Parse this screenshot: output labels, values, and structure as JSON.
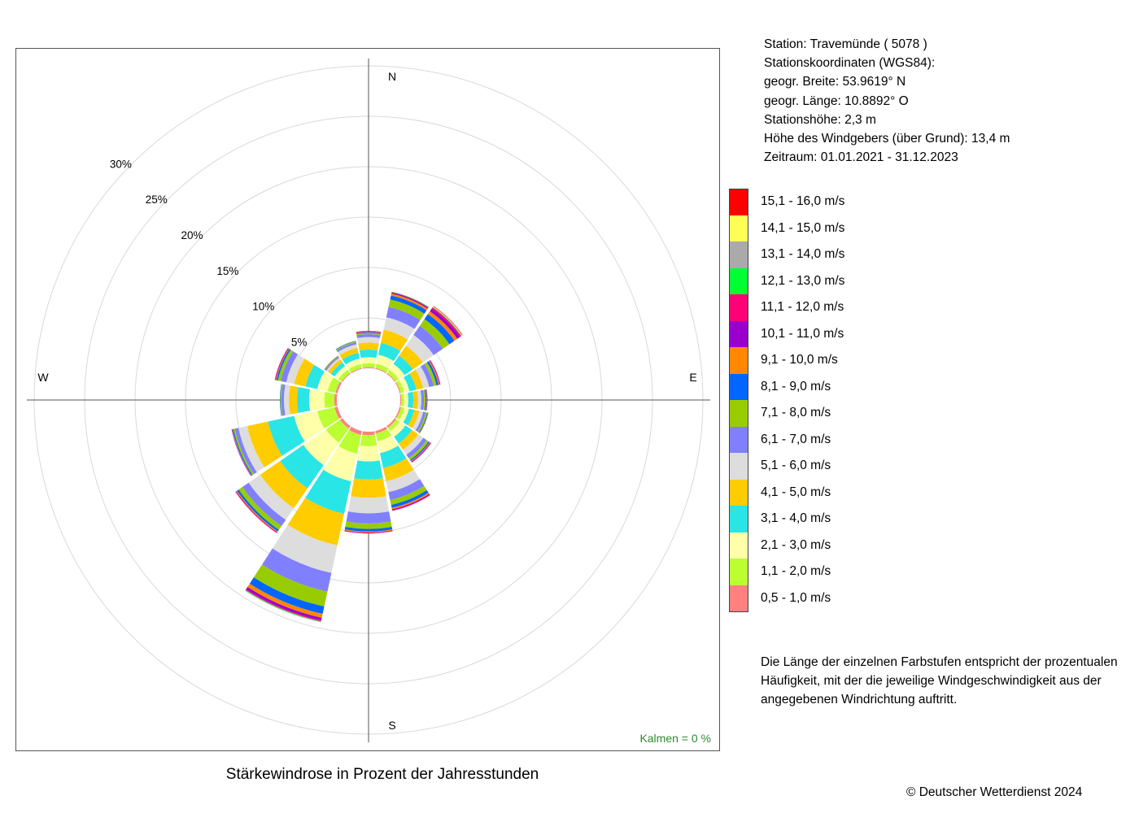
{
  "station": {
    "line1": "Station:  Travemünde  ( 5078 )",
    "line2": "Stationskoordinaten (WGS84):",
    "line3": "geogr. Breite: 53.9619° N",
    "line4": "geogr. Länge: 10.8892° O",
    "line5": "Stationshöhe: 2,3 m",
    "line6": "Höhe des Windgebers (über Grund): 13,4 m",
    "line7": "Zeitraum: 01.01.2021 - 31.12.2023"
  },
  "note": "Die Länge der einzelnen Farbstufen entspricht der prozentualen Häufigkeit, mit der die jeweilige Windgeschwindigkeit aus der angegebenen Windrichtung auftritt.",
  "copyright": "© Deutscher Wetterdienst  2024",
  "chart_data": {
    "type": "polar-stacked-bar",
    "title": "Stärkewindrose in Prozent der Jahresstunden",
    "directions": [
      "N",
      "NNO",
      "NO",
      "ONO",
      "O",
      "OSO",
      "SO",
      "SSO",
      "S",
      "SSW",
      "SW",
      "WSW",
      "W",
      "WNW",
      "NW",
      "NNW"
    ],
    "compass_labels": {
      "north": "N",
      "east": "E",
      "south": "S",
      "west": "W"
    },
    "radial_ticks": [
      {
        "value": 5,
        "label": "5%"
      },
      {
        "value": 10,
        "label": "10%"
      },
      {
        "value": 15,
        "label": "15%"
      },
      {
        "value": 20,
        "label": "20%"
      },
      {
        "value": 25,
        "label": "25%"
      },
      {
        "value": 30,
        "label": "30%"
      }
    ],
    "calm_label": "Kalmen  =  0 %",
    "bins": [
      {
        "label": "0,5 - 1,0 m/s",
        "color": "#ff8080"
      },
      {
        "label": "1,1 - 2,0 m/s",
        "color": "#bbff33"
      },
      {
        "label": "2,1 - 3,0 m/s",
        "color": "#ffffaa"
      },
      {
        "label": "3,1 - 4,0 m/s",
        "color": "#29e5e5"
      },
      {
        "label": "4,1 - 5,0 m/s",
        "color": "#ffcc00"
      },
      {
        "label": "5,1 - 6,0 m/s",
        "color": "#dddddd"
      },
      {
        "label": "6,1 - 7,0 m/s",
        "color": "#8080ff"
      },
      {
        "label": "7,1 - 8,0 m/s",
        "color": "#99cc00"
      },
      {
        "label": "8,1 - 9,0 m/s",
        "color": "#0066ff"
      },
      {
        "label": "9,1 - 10,0 m/s",
        "color": "#ff8800"
      },
      {
        "label": "10,1 - 11,0 m/s",
        "color": "#9900cc"
      },
      {
        "label": "11,1 - 12,0 m/s",
        "color": "#ff0077"
      },
      {
        "label": "12,1 - 13,0 m/s",
        "color": "#00ff33"
      },
      {
        "label": "13,1 - 14,0 m/s",
        "color": "#aaaaaa"
      },
      {
        "label": "14,1 - 15,0 m/s",
        "color": "#ffff55"
      },
      {
        "label": "15,1 - 16,0 m/s",
        "color": "#ff0000"
      }
    ],
    "series": [
      {
        "direction": "N",
        "values": [
          0.1,
          0.4,
          0.6,
          0.75,
          0.7,
          0.55,
          0.3,
          0.1,
          0.07,
          0.05,
          0.05,
          0.05,
          0,
          0,
          0,
          0
        ]
      },
      {
        "direction": "NNO",
        "values": [
          0.1,
          0.45,
          0.9,
          1.2,
          1.35,
          1.25,
          1.05,
          0.75,
          0.4,
          0.2,
          0.1,
          0.05,
          0.05,
          0,
          0,
          0
        ]
      },
      {
        "direction": "NO",
        "values": [
          0.1,
          0.4,
          0.7,
          1.0,
          1.2,
          1.3,
          1.1,
          0.8,
          0.6,
          0.35,
          0.3,
          0.15,
          0.05,
          0.05,
          0.05,
          0.05
        ]
      },
      {
        "direction": "ONO",
        "values": [
          0.1,
          0.35,
          0.55,
          0.7,
          0.7,
          0.6,
          0.45,
          0.3,
          0.2,
          0.1,
          0.05,
          0.05,
          0,
          0,
          0,
          0
        ]
      },
      {
        "direction": "O",
        "values": [
          0.1,
          0.3,
          0.4,
          0.5,
          0.45,
          0.35,
          0.25,
          0.15,
          0.1,
          0.05,
          0.05,
          0,
          0,
          0,
          0,
          0
        ]
      },
      {
        "direction": "OSO",
        "values": [
          0.15,
          0.35,
          0.45,
          0.55,
          0.5,
          0.4,
          0.25,
          0.15,
          0.08,
          0.05,
          0,
          0,
          0,
          0,
          0,
          0
        ]
      },
      {
        "direction": "SO",
        "values": [
          0.2,
          0.4,
          0.7,
          0.8,
          0.75,
          0.6,
          0.4,
          0.25,
          0.12,
          0.08,
          0.05,
          0.05,
          0,
          0,
          0,
          0
        ]
      },
      {
        "direction": "SSO",
        "values": [
          0.25,
          0.8,
          1.2,
          1.5,
          1.35,
          1.1,
          0.8,
          0.5,
          0.3,
          0.15,
          0.1,
          0.05,
          0,
          0,
          0,
          0
        ]
      },
      {
        "direction": "S",
        "values": [
          0.35,
          1.1,
          1.5,
          1.8,
          1.8,
          1.55,
          1.0,
          0.55,
          0.25,
          0.1,
          0.05,
          0.05,
          0,
          0,
          0,
          0
        ]
      },
      {
        "direction": "SSW",
        "values": [
          0.4,
          1.9,
          2.8,
          3.3,
          3.2,
          2.8,
          1.9,
          1.5,
          0.75,
          0.4,
          0.25,
          0.1,
          0.05,
          0.05,
          0,
          0
        ]
      },
      {
        "direction": "SW",
        "values": [
          0.3,
          1.7,
          2.7,
          2.8,
          2.4,
          1.4,
          0.75,
          0.45,
          0.2,
          0.1,
          0.05,
          0.05,
          0,
          0,
          0,
          0
        ]
      },
      {
        "direction": "WSW",
        "values": [
          0.3,
          1.75,
          2.35,
          2.65,
          2.1,
          0.9,
          0.35,
          0.15,
          0.1,
          0.05,
          0.05,
          0,
          0,
          0,
          0,
          0
        ]
      },
      {
        "direction": "W",
        "values": [
          0.25,
          1.0,
          1.5,
          1.2,
          0.8,
          0.5,
          0.25,
          0.1,
          0.05,
          0,
          0,
          0,
          0,
          0,
          0,
          0
        ]
      },
      {
        "direction": "WNW",
        "values": [
          0.2,
          0.8,
          1.05,
          1.2,
          1.15,
          0.8,
          0.55,
          0.3,
          0.15,
          0.07,
          0.05,
          0.05,
          0,
          0,
          0,
          0
        ]
      },
      {
        "direction": "NW",
        "values": [
          0.1,
          0.4,
          0.45,
          0.45,
          0.35,
          0.2,
          0.1,
          0.05,
          0.05,
          0.05,
          0,
          0,
          0,
          0,
          0,
          0
        ]
      },
      {
        "direction": "NNW",
        "values": [
          0.1,
          0.4,
          0.55,
          0.6,
          0.5,
          0.35,
          0.2,
          0.1,
          0.05,
          0,
          0,
          0,
          0,
          0,
          0,
          0
        ]
      }
    ]
  }
}
